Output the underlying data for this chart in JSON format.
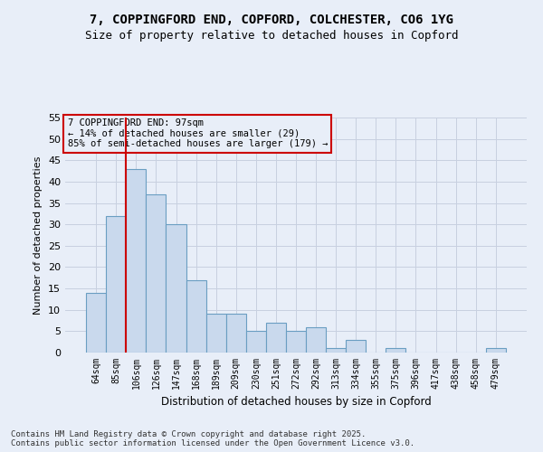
{
  "title_line1": "7, COPPINGFORD END, COPFORD, COLCHESTER, CO6 1YG",
  "title_line2": "Size of property relative to detached houses in Copford",
  "xlabel": "Distribution of detached houses by size in Copford",
  "ylabel": "Number of detached properties",
  "categories": [
    "64sqm",
    "85sqm",
    "106sqm",
    "126sqm",
    "147sqm",
    "168sqm",
    "189sqm",
    "209sqm",
    "230sqm",
    "251sqm",
    "272sqm",
    "292sqm",
    "313sqm",
    "334sqm",
    "355sqm",
    "375sqm",
    "396sqm",
    "417sqm",
    "438sqm",
    "458sqm",
    "479sqm"
  ],
  "values": [
    14,
    32,
    43,
    37,
    30,
    17,
    9,
    9,
    5,
    7,
    5,
    6,
    1,
    3,
    0,
    1,
    0,
    0,
    0,
    0,
    1
  ],
  "bar_color": "#c9d9ed",
  "bar_edge_color": "#6a9ec2",
  "bar_edge_width": 0.8,
  "grid_color": "#c8d0e0",
  "background_color": "#e8eef8",
  "vline_x_index": 1.5,
  "vline_color": "#cc0000",
  "annotation_text": "7 COPPINGFORD END: 97sqm\n← 14% of detached houses are smaller (29)\n85% of semi-detached houses are larger (179) →",
  "annotation_box_color": "#cc0000",
  "ylim": [
    0,
    55
  ],
  "yticks": [
    0,
    5,
    10,
    15,
    20,
    25,
    30,
    35,
    40,
    45,
    50,
    55
  ],
  "footer_line1": "Contains HM Land Registry data © Crown copyright and database right 2025.",
  "footer_line2": "Contains public sector information licensed under the Open Government Licence v3.0."
}
